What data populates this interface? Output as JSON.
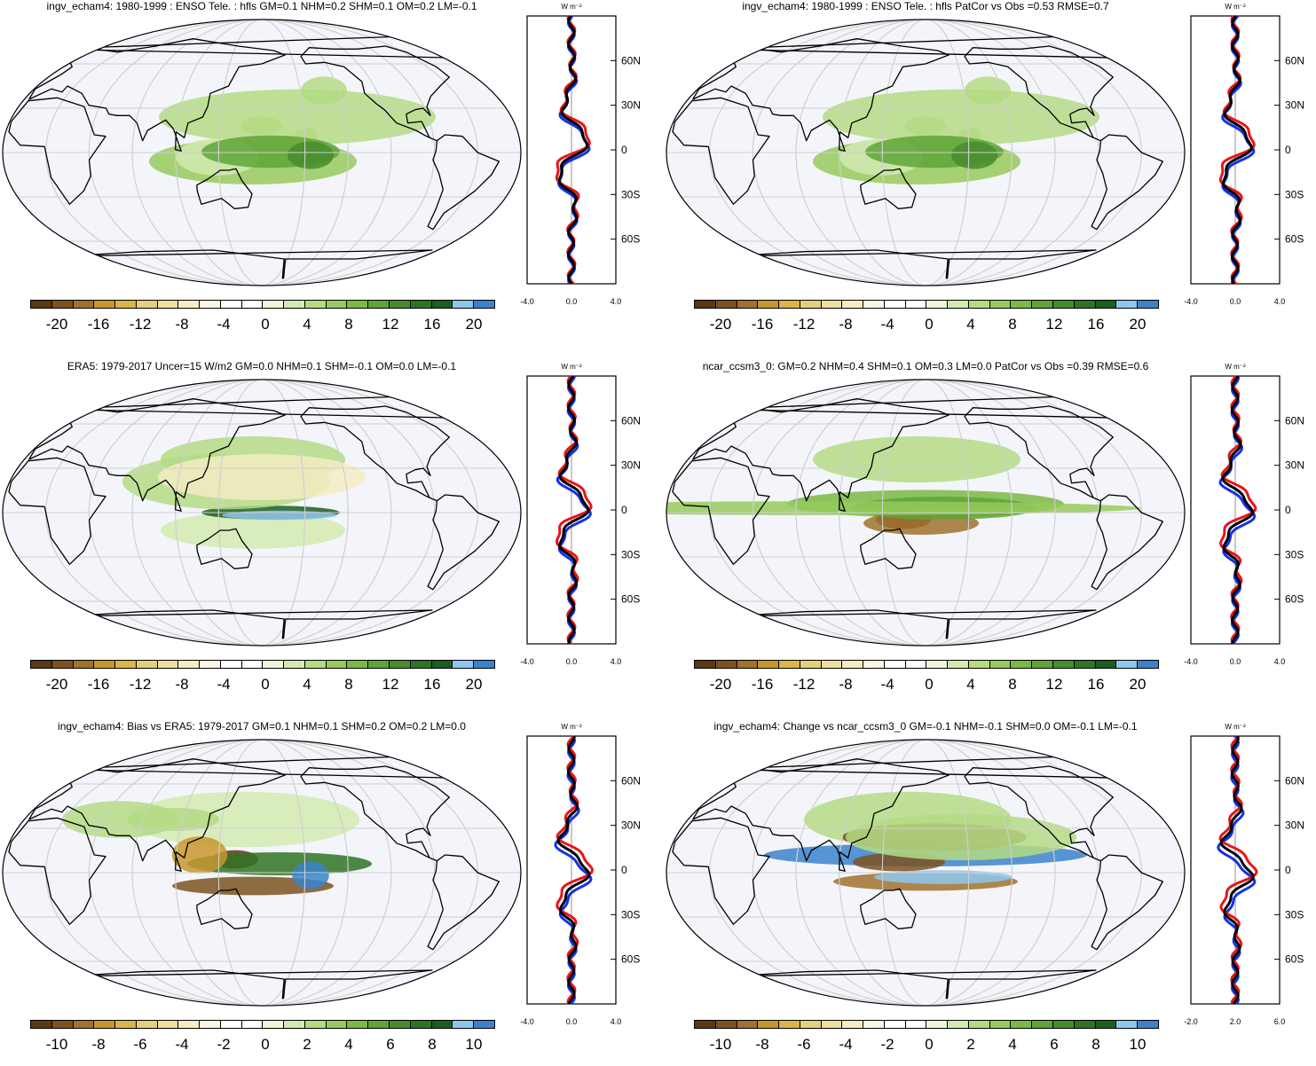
{
  "panels": [
    {
      "title": "ingv_echam4: 1980-1999 : ENSO Tele. : hfls GM=0.1 NHM=0.2 SHM=0.1 OM=0.2 LM=-0.1",
      "colorbar_labels": [
        "-20",
        "-16",
        "-12",
        "-8",
        "-4",
        "0",
        "4",
        "8",
        "12",
        "16",
        "20"
      ],
      "zonal_units": "W m⁻²",
      "zonal_xticks": [
        "-4.0",
        "0.0",
        "4.0"
      ],
      "zonal_yticks": [
        "60N",
        "30N",
        "0",
        "30S",
        "60S"
      ]
    },
    {
      "title": "ingv_echam4: 1980-1999 : ENSO Tele. : hfls PatCor vs Obs =0.53 RMSE=0.7",
      "colorbar_labels": [
        "-20",
        "-16",
        "-12",
        "-8",
        "-4",
        "0",
        "4",
        "8",
        "12",
        "16",
        "20"
      ],
      "zonal_units": "W m⁻²",
      "zonal_xticks": [
        "-4.0",
        "0.0",
        "4.0"
      ],
      "zonal_yticks": [
        "60N",
        "30N",
        "0",
        "30S",
        "60S"
      ]
    },
    {
      "title": "ERA5: 1979-2017 Uncer=15 W/m2 GM=0.0 NHM=0.1 SHM=-0.1 OM=0.0 LM=-0.1",
      "colorbar_labels": [
        "-20",
        "-16",
        "-12",
        "-8",
        "-4",
        "0",
        "4",
        "8",
        "12",
        "16",
        "20"
      ],
      "zonal_units": "W m⁻²",
      "zonal_xticks": [
        "-4.0",
        "0.0",
        "4.0"
      ],
      "zonal_yticks": [
        "60N",
        "30N",
        "0",
        "30S",
        "60S"
      ]
    },
    {
      "title": "ncar_ccsm3_0: GM=0.2 NHM=0.4 SHM=0.1 OM=0.3 LM=0.0 PatCor vs Obs =0.39 RMSE=0.6",
      "colorbar_labels": [
        "-20",
        "-16",
        "-12",
        "-8",
        "-4",
        "0",
        "4",
        "8",
        "12",
        "16",
        "20"
      ],
      "zonal_units": "W m⁻²",
      "zonal_xticks": [
        "-4.0",
        "0.0",
        "4.0"
      ],
      "zonal_yticks": [
        "60N",
        "30N",
        "0",
        "30S",
        "60S"
      ]
    },
    {
      "title": "ingv_echam4: Bias vs ERA5: 1979-2017 GM=0.1 NHM=0.1 SHM=0.2 OM=0.2 LM=0.0",
      "colorbar_labels": [
        "-10",
        "-8",
        "-6",
        "-4",
        "-2",
        "0",
        "2",
        "4",
        "6",
        "8",
        "10"
      ],
      "zonal_units": "W m⁻²",
      "zonal_xticks": [
        "-4.0",
        "0.0",
        "4.0"
      ],
      "zonal_yticks": [
        "60N",
        "30N",
        "0",
        "30S",
        "60S"
      ]
    },
    {
      "title": "ingv_echam4: Change vs ncar_ccsm3_0 GM=-0.1 NHM=-0.1 SHM=0.0 OM=-0.1 LM=-0.1",
      "colorbar_labels": [
        "-10",
        "-8",
        "-6",
        "-4",
        "-2",
        "0",
        "2",
        "4",
        "6",
        "8",
        "10"
      ],
      "zonal_units": "W m⁻²",
      "zonal_xticks": [
        "-2.0",
        "2.0",
        "6.0"
      ],
      "zonal_yticks": [
        "60N",
        "30N",
        "0",
        "30S",
        "60S"
      ]
    }
  ],
  "colors": {
    "palette": [
      "#5a3a14",
      "#7d5220",
      "#a0722e",
      "#c8962e",
      "#d9b54a",
      "#e5cf7a",
      "#eedfa0",
      "#f5ecc4",
      "#fbf6e4",
      "#ffffff",
      "#ffffff",
      "#eef6dc",
      "#d2eab0",
      "#b4da82",
      "#97ca5c",
      "#7ab944",
      "#5ea437",
      "#468c2e",
      "#2f7325",
      "#1b5e20",
      "#8ec7ee",
      "#3b82cc"
    ],
    "ocean": "#f4f5fb",
    "zonal_model": "#e8141a",
    "zonal_obs": "#1431e8",
    "zonal_mean": "#000000"
  }
}
